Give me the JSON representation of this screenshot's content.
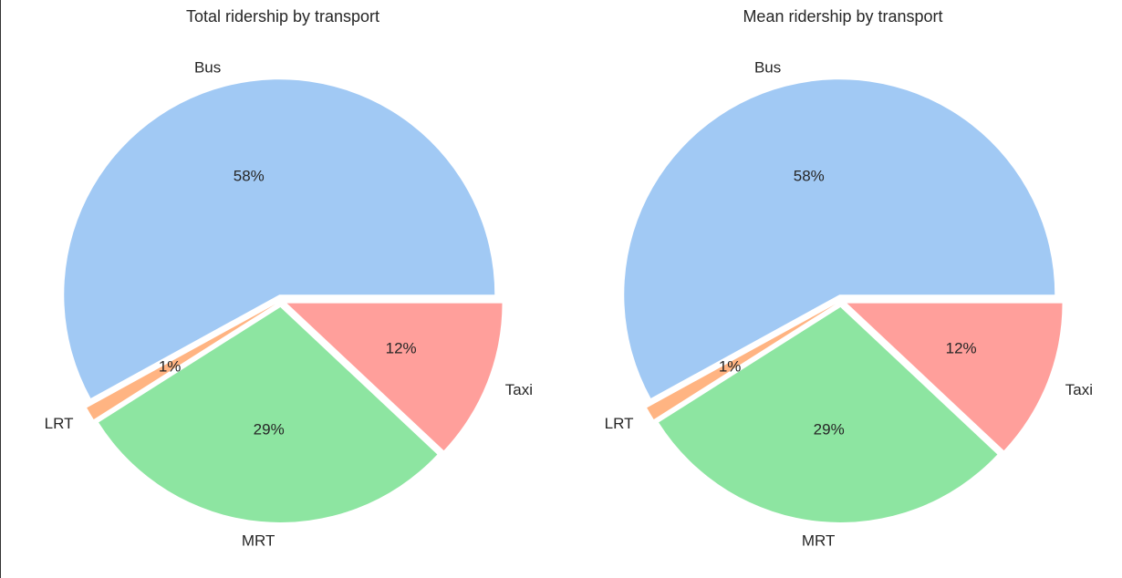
{
  "chart_data": [
    {
      "type": "pie",
      "title": "Total ridership by transport",
      "categories": [
        "Bus",
        "LRT",
        "MRT",
        "Taxi"
      ],
      "values": [
        58,
        1,
        29,
        12
      ],
      "value_labels": [
        "58%",
        "1%",
        "29%",
        "12%"
      ],
      "colors": [
        "#a1c9f4",
        "#ffb482",
        "#8de5a1",
        "#ff9f9b"
      ],
      "exploded": true,
      "start": "3 o'clock",
      "direction": "counterclockwise"
    },
    {
      "type": "pie",
      "title": "Mean ridership by transport",
      "categories": [
        "Bus",
        "LRT",
        "MRT",
        "Taxi"
      ],
      "values": [
        58,
        1,
        29,
        12
      ],
      "value_labels": [
        "58%",
        "1%",
        "29%",
        "12%"
      ],
      "colors": [
        "#a1c9f4",
        "#ffb482",
        "#8de5a1",
        "#ff9f9b"
      ],
      "exploded": true,
      "start": "3 o'clock",
      "direction": "counterclockwise"
    }
  ]
}
